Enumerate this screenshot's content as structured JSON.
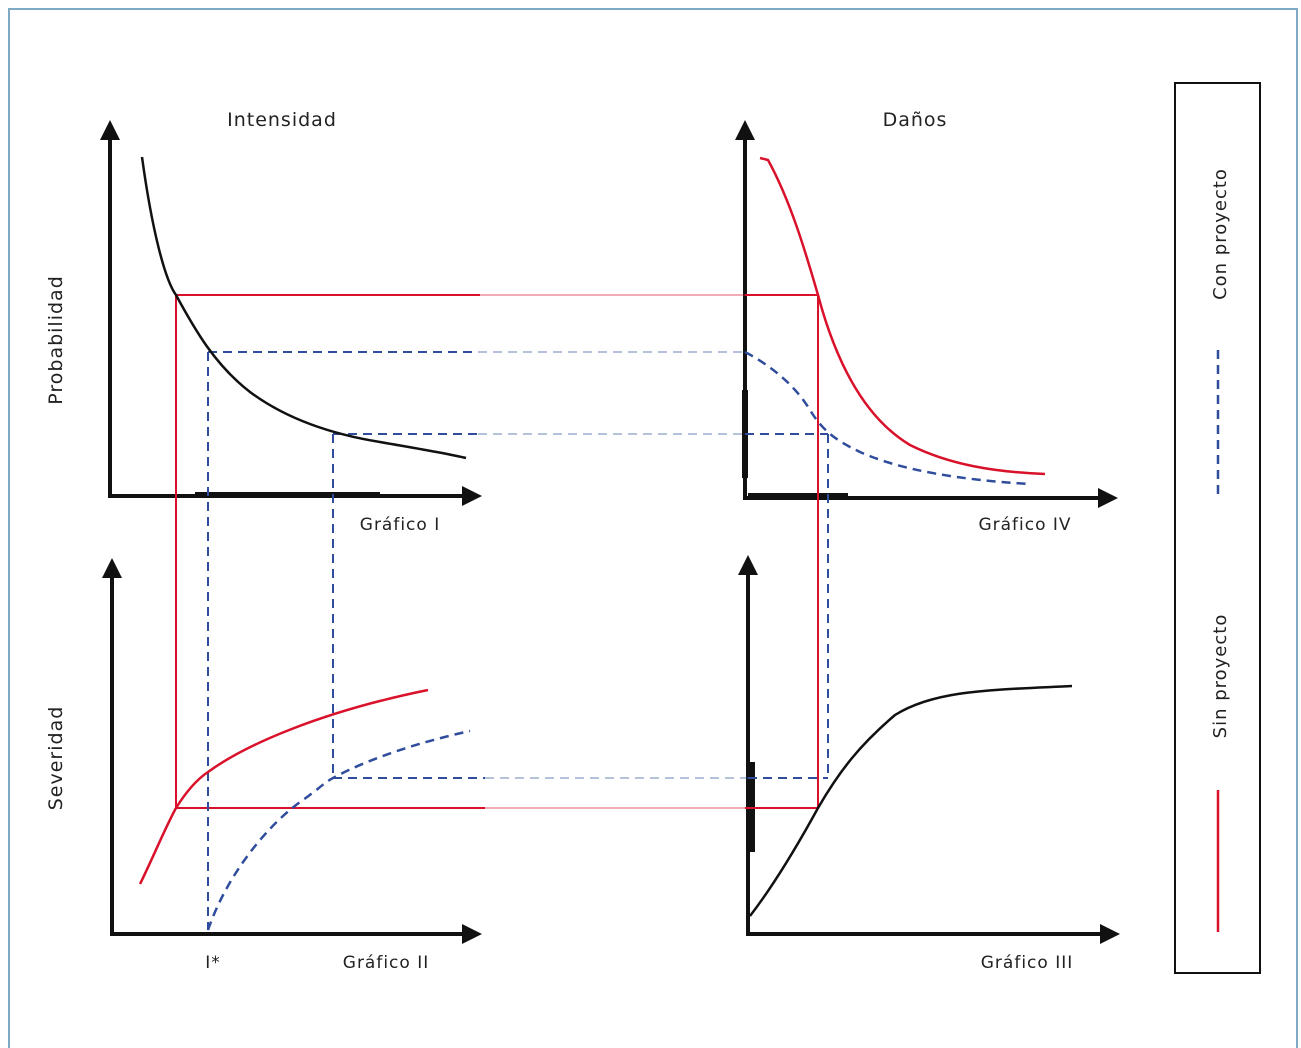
{
  "titles": {
    "intensidad": "Intensidad",
    "danos": "Daños",
    "probabilidad": "Probabilidad",
    "severidad": "Severidad"
  },
  "charts": {
    "g1": "Gráfico I",
    "g2": "Gráfico II",
    "g3": "Gráfico III",
    "g4": "Gráfico IV",
    "istar": "I*"
  },
  "legend": {
    "con": "Con proyecto",
    "sin": "Sin proyecto"
  },
  "colors": {
    "sin_proyecto": "#d9112a",
    "con_proyecto": "#2f4d9c",
    "axes": "#111111",
    "frame": "#7fa9c4"
  }
}
